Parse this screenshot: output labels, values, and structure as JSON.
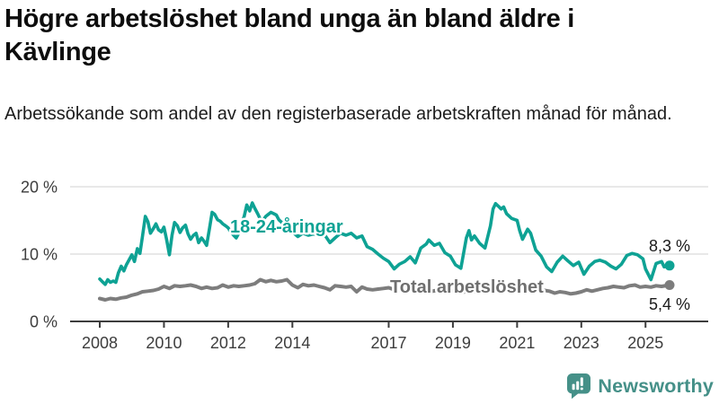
{
  "header": {
    "title_line1": "Högre arbetslöshet bland unga än bland äldre i",
    "title_line2": "Kävlinge",
    "subtitle": "Arbetssökande som andel av den registerbaserade arbetskraften månad för månad."
  },
  "branding": {
    "name": "Newsworthy",
    "icon": "bar-chart-speech-bubble",
    "color": "#459088"
  },
  "chart_data": {
    "type": "line",
    "title": "Högre arbetslöshet bland unga än bland äldre i Kävlinge",
    "grid": true,
    "legend": "inline-labels",
    "x_axis": {
      "ticks": [
        2008,
        2010,
        2012,
        2014,
        2017,
        2019,
        2021,
        2023,
        2025
      ],
      "range": [
        2007.85,
        2026
      ]
    },
    "y_axis": {
      "unit": "%",
      "range": [
        0,
        20
      ],
      "ticks": [
        {
          "value": 0,
          "label": "0 %"
        },
        {
          "value": 10,
          "label": "10 %"
        },
        {
          "value": 20,
          "label": "20 %"
        }
      ]
    },
    "series": [
      {
        "name": "18-24-åringar",
        "color": "#0ea294",
        "line_width": 3.6,
        "end_value": 8.3,
        "end_label": "8,3 %",
        "points": [
          [
            2008.0,
            6.3
          ],
          [
            2008.08,
            5.9
          ],
          [
            2008.17,
            5.5
          ],
          [
            2008.25,
            6.2
          ],
          [
            2008.33,
            5.8
          ],
          [
            2008.42,
            6.0
          ],
          [
            2008.5,
            5.8
          ],
          [
            2008.58,
            7.2
          ],
          [
            2008.67,
            8.2
          ],
          [
            2008.75,
            7.5
          ],
          [
            2008.83,
            8.4
          ],
          [
            2008.92,
            9.2
          ],
          [
            2009.0,
            9.9
          ],
          [
            2009.08,
            8.9
          ],
          [
            2009.17,
            10.8
          ],
          [
            2009.25,
            10.1
          ],
          [
            2009.33,
            12.6
          ],
          [
            2009.42,
            15.6
          ],
          [
            2009.5,
            14.8
          ],
          [
            2009.58,
            13.1
          ],
          [
            2009.67,
            13.8
          ],
          [
            2009.75,
            14.5
          ],
          [
            2009.83,
            13.6
          ],
          [
            2009.92,
            13.3
          ],
          [
            2010.0,
            14.0
          ],
          [
            2010.08,
            12.2
          ],
          [
            2010.17,
            9.9
          ],
          [
            2010.25,
            12.8
          ],
          [
            2010.33,
            14.7
          ],
          [
            2010.42,
            14.2
          ],
          [
            2010.5,
            13.2
          ],
          [
            2010.58,
            13.9
          ],
          [
            2010.67,
            14.3
          ],
          [
            2010.75,
            13.0
          ],
          [
            2010.83,
            12.2
          ],
          [
            2010.92,
            12.8
          ],
          [
            2011.0,
            13.1
          ],
          [
            2011.08,
            11.7
          ],
          [
            2011.17,
            12.4
          ],
          [
            2011.25,
            11.9
          ],
          [
            2011.33,
            11.3
          ],
          [
            2011.42,
            13.9
          ],
          [
            2011.5,
            16.2
          ],
          [
            2011.58,
            15.9
          ],
          [
            2011.67,
            15.1
          ],
          [
            2011.75,
            14.9
          ],
          [
            2011.83,
            14.5
          ],
          [
            2011.92,
            14.2
          ],
          [
            2012.0,
            13.9
          ],
          [
            2012.08,
            13.3
          ],
          [
            2012.17,
            12.8
          ],
          [
            2012.25,
            12.4
          ],
          [
            2012.33,
            13.1
          ],
          [
            2012.42,
            14.5
          ],
          [
            2012.5,
            15.6
          ],
          [
            2012.58,
            17.3
          ],
          [
            2012.67,
            16.4
          ],
          [
            2012.75,
            17.6
          ],
          [
            2012.83,
            16.8
          ],
          [
            2012.92,
            16.0
          ],
          [
            2013.0,
            15.2
          ],
          [
            2013.08,
            15.0
          ],
          [
            2013.17,
            15.6
          ],
          [
            2013.25,
            15.9
          ],
          [
            2013.33,
            16.2
          ],
          [
            2013.42,
            16.0
          ],
          [
            2013.5,
            15.8
          ],
          [
            2013.58,
            15.1
          ],
          [
            2013.67,
            14.7
          ],
          [
            2013.75,
            14.4
          ],
          [
            2013.83,
            14.1
          ],
          [
            2013.92,
            13.7
          ],
          [
            2014.0,
            13.3
          ],
          [
            2014.17,
            12.6
          ],
          [
            2014.33,
            13.1
          ],
          [
            2014.5,
            12.8
          ],
          [
            2014.67,
            13.0
          ],
          [
            2014.83,
            12.6
          ],
          [
            2015.0,
            12.9
          ],
          [
            2015.17,
            11.7
          ],
          [
            2015.33,
            12.4
          ],
          [
            2015.5,
            13.1
          ],
          [
            2015.67,
            12.8
          ],
          [
            2015.83,
            13.1
          ],
          [
            2016.0,
            12.4
          ],
          [
            2016.17,
            12.7
          ],
          [
            2016.33,
            11.1
          ],
          [
            2016.5,
            10.7
          ],
          [
            2016.67,
            10.0
          ],
          [
            2016.83,
            9.4
          ],
          [
            2017.0,
            8.9
          ],
          [
            2017.17,
            7.8
          ],
          [
            2017.33,
            8.5
          ],
          [
            2017.5,
            8.9
          ],
          [
            2017.67,
            9.6
          ],
          [
            2017.83,
            8.7
          ],
          [
            2018.0,
            10.9
          ],
          [
            2018.17,
            11.5
          ],
          [
            2018.25,
            12.1
          ],
          [
            2018.42,
            11.3
          ],
          [
            2018.58,
            11.6
          ],
          [
            2018.75,
            10.2
          ],
          [
            2018.92,
            9.7
          ],
          [
            2019.08,
            8.4
          ],
          [
            2019.25,
            7.9
          ],
          [
            2019.42,
            12.4
          ],
          [
            2019.5,
            13.5
          ],
          [
            2019.58,
            12.1
          ],
          [
            2019.67,
            12.7
          ],
          [
            2019.83,
            11.6
          ],
          [
            2020.0,
            10.9
          ],
          [
            2020.17,
            14.2
          ],
          [
            2020.25,
            16.7
          ],
          [
            2020.33,
            17.5
          ],
          [
            2020.42,
            17.1
          ],
          [
            2020.5,
            16.7
          ],
          [
            2020.58,
            17.0
          ],
          [
            2020.67,
            16.0
          ],
          [
            2020.83,
            15.3
          ],
          [
            2021.0,
            15.0
          ],
          [
            2021.08,
            13.5
          ],
          [
            2021.17,
            12.2
          ],
          [
            2021.33,
            13.7
          ],
          [
            2021.42,
            13.1
          ],
          [
            2021.58,
            10.6
          ],
          [
            2021.75,
            9.7
          ],
          [
            2021.92,
            8.1
          ],
          [
            2022.08,
            7.4
          ],
          [
            2022.25,
            8.8
          ],
          [
            2022.42,
            9.7
          ],
          [
            2022.58,
            9.0
          ],
          [
            2022.75,
            8.3
          ],
          [
            2022.92,
            8.8
          ],
          [
            2023.08,
            7.0
          ],
          [
            2023.25,
            8.2
          ],
          [
            2023.42,
            8.9
          ],
          [
            2023.58,
            9.1
          ],
          [
            2023.75,
            8.8
          ],
          [
            2023.92,
            8.2
          ],
          [
            2024.08,
            7.8
          ],
          [
            2024.25,
            8.5
          ],
          [
            2024.42,
            9.8
          ],
          [
            2024.58,
            10.1
          ],
          [
            2024.75,
            9.9
          ],
          [
            2024.92,
            9.3
          ],
          [
            2025.0,
            7.8
          ],
          [
            2025.17,
            6.2
          ],
          [
            2025.33,
            8.6
          ],
          [
            2025.5,
            8.9
          ],
          [
            2025.58,
            8.1
          ],
          [
            2025.75,
            8.3
          ]
        ]
      },
      {
        "name": "Total arbetslöshet",
        "color": "#7d7d7d",
        "label_color": "#6f6f6f",
        "line_width": 4,
        "end_value": 5.4,
        "end_label": "5,4 %",
        "points": [
          [
            2008.0,
            3.4
          ],
          [
            2008.17,
            3.2
          ],
          [
            2008.33,
            3.4
          ],
          [
            2008.5,
            3.3
          ],
          [
            2008.67,
            3.5
          ],
          [
            2008.83,
            3.6
          ],
          [
            2009.0,
            3.9
          ],
          [
            2009.17,
            4.1
          ],
          [
            2009.33,
            4.4
          ],
          [
            2009.5,
            4.5
          ],
          [
            2009.67,
            4.6
          ],
          [
            2009.83,
            4.8
          ],
          [
            2010.0,
            5.2
          ],
          [
            2010.17,
            4.9
          ],
          [
            2010.33,
            5.3
          ],
          [
            2010.5,
            5.2
          ],
          [
            2010.67,
            5.3
          ],
          [
            2010.83,
            5.4
          ],
          [
            2011.0,
            5.2
          ],
          [
            2011.17,
            4.9
          ],
          [
            2011.33,
            5.1
          ],
          [
            2011.5,
            4.9
          ],
          [
            2011.67,
            5.0
          ],
          [
            2011.83,
            5.4
          ],
          [
            2012.0,
            5.1
          ],
          [
            2012.17,
            5.3
          ],
          [
            2012.33,
            5.2
          ],
          [
            2012.5,
            5.3
          ],
          [
            2012.67,
            5.4
          ],
          [
            2012.83,
            5.6
          ],
          [
            2013.0,
            6.2
          ],
          [
            2013.17,
            5.9
          ],
          [
            2013.33,
            6.1
          ],
          [
            2013.5,
            5.9
          ],
          [
            2013.67,
            6.0
          ],
          [
            2013.83,
            6.2
          ],
          [
            2014.0,
            5.4
          ],
          [
            2014.17,
            5.0
          ],
          [
            2014.33,
            5.5
          ],
          [
            2014.5,
            5.3
          ],
          [
            2014.67,
            5.4
          ],
          [
            2014.83,
            5.2
          ],
          [
            2015.0,
            5.0
          ],
          [
            2015.17,
            4.7
          ],
          [
            2015.33,
            5.3
          ],
          [
            2015.5,
            5.2
          ],
          [
            2015.67,
            5.1
          ],
          [
            2015.83,
            5.2
          ],
          [
            2016.0,
            4.4
          ],
          [
            2016.17,
            5.1
          ],
          [
            2016.33,
            4.8
          ],
          [
            2016.5,
            4.7
          ],
          [
            2016.67,
            4.8
          ],
          [
            2016.83,
            4.9
          ],
          [
            2017.0,
            5.0
          ],
          [
            2017.25,
            4.6
          ],
          [
            2017.5,
            4.8
          ],
          [
            2017.75,
            4.5
          ],
          [
            2018.0,
            4.7
          ],
          [
            2018.25,
            4.4
          ],
          [
            2018.5,
            4.6
          ],
          [
            2018.75,
            4.3
          ],
          [
            2019.0,
            4.5
          ],
          [
            2019.25,
            4.3
          ],
          [
            2019.5,
            4.5
          ],
          [
            2019.75,
            4.4
          ],
          [
            2020.0,
            4.6
          ],
          [
            2020.25,
            5.3
          ],
          [
            2020.42,
            5.6
          ],
          [
            2020.58,
            5.5
          ],
          [
            2020.75,
            5.4
          ],
          [
            2021.0,
            5.3
          ],
          [
            2021.25,
            5.1
          ],
          [
            2021.5,
            4.9
          ],
          [
            2021.75,
            4.7
          ],
          [
            2022.0,
            4.5
          ],
          [
            2022.17,
            4.2
          ],
          [
            2022.33,
            4.4
          ],
          [
            2022.5,
            4.3
          ],
          [
            2022.67,
            4.1
          ],
          [
            2022.83,
            4.2
          ],
          [
            2023.0,
            4.4
          ],
          [
            2023.17,
            4.7
          ],
          [
            2023.33,
            4.5
          ],
          [
            2023.5,
            4.7
          ],
          [
            2023.67,
            4.9
          ],
          [
            2023.83,
            5.0
          ],
          [
            2024.0,
            5.2
          ],
          [
            2024.17,
            5.1
          ],
          [
            2024.33,
            5.0
          ],
          [
            2024.5,
            5.3
          ],
          [
            2024.67,
            5.4
          ],
          [
            2024.83,
            5.1
          ],
          [
            2025.0,
            5.2
          ],
          [
            2025.17,
            5.1
          ],
          [
            2025.33,
            5.3
          ],
          [
            2025.5,
            5.2
          ],
          [
            2025.75,
            5.4
          ]
        ]
      }
    ]
  }
}
